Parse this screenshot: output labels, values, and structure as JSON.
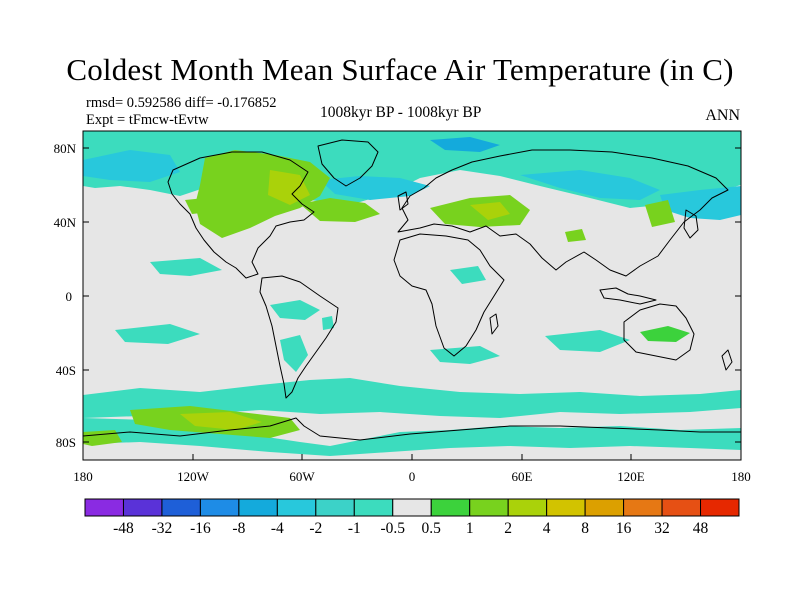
{
  "header": {
    "title": "Coldest Month Mean Surface Air Temperature (in C)",
    "stats": "rmsd= 0.592586  diff= -0.176852",
    "experiment": "Expt = tFmcw-tEvtw",
    "period": "1008kyr BP - 1008kyr BP",
    "season": "ANN"
  },
  "axes": {
    "lat_labels": [
      "80N",
      "40N",
      "0",
      "40S",
      "80S"
    ],
    "lon_labels": [
      "180",
      "120W",
      "60W",
      "0",
      "60E",
      "120E",
      "180"
    ]
  },
  "colorbar": {
    "labels": [
      "-48",
      "-32",
      "-16",
      "-8",
      "-4",
      "-2",
      "-1",
      "-0.5",
      "0.5",
      "1",
      "2",
      "4",
      "8",
      "16",
      "32",
      "48"
    ],
    "colors": [
      "#8a2be2",
      "#5a32d8",
      "#1e5fd8",
      "#1e8ce6",
      "#14aadc",
      "#28c8dc",
      "#3cd2c8",
      "#3cdcbe",
      "#e6e6e6",
      "#3cd23c",
      "#78d21e",
      "#aad20a",
      "#d2c300",
      "#dca000",
      "#e67814",
      "#e65014",
      "#e62800"
    ]
  },
  "colors": {
    "background": "#e6e6e6",
    "cold_light": "#3cdcbe",
    "cold_mid": "#28c8dc",
    "warm_light": "#78d21e",
    "warm_mid": "#aad20a"
  }
}
